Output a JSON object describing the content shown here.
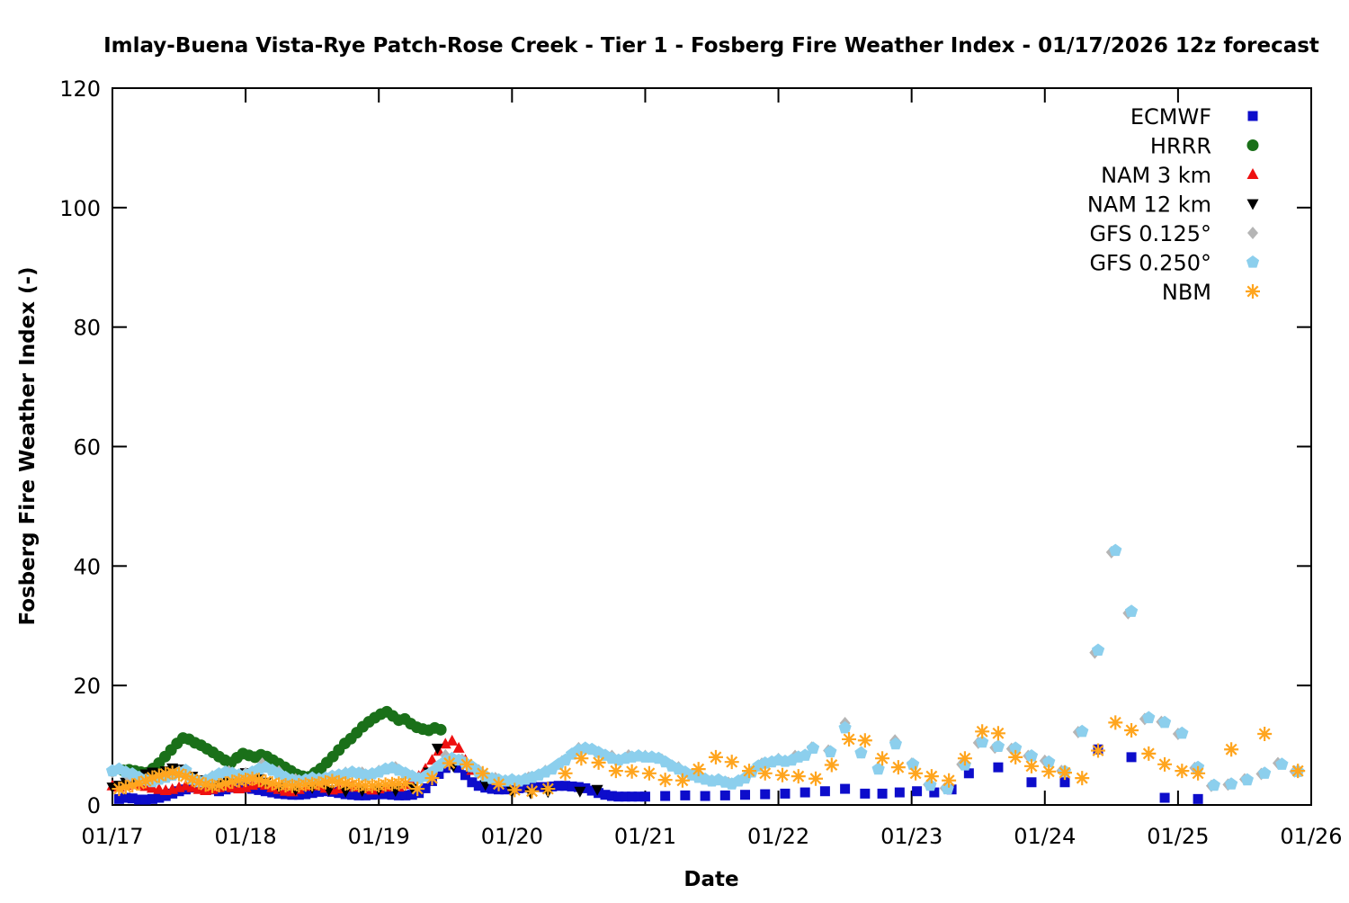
{
  "title": "Imlay-Buena Vista-Rye Patch-Rose Creek - Tier 1 - Fosberg Fire Weather Index - 01/17/2026 12z forecast",
  "chart_data": {
    "type": "scatter",
    "xlabel": "Date",
    "ylabel": "Fosberg Fire Weather Index (-)",
    "x_tick_labels": [
      "01/17",
      "01/18",
      "01/19",
      "01/20",
      "01/21",
      "01/22",
      "01/23",
      "01/24",
      "01/25",
      "01/26"
    ],
    "x_range_days": [
      0,
      9
    ],
    "ylim": [
      0,
      120
    ],
    "y_ticks": [
      0,
      20,
      40,
      60,
      80,
      100,
      120
    ],
    "grid": false,
    "legend_position": "top-right-inside",
    "series": [
      {
        "name": "ECMWF",
        "marker": "square",
        "color": "#0d0dcb",
        "start": 0.05,
        "step": 0.05,
        "values": [
          1.0,
          1.2,
          1.1,
          0.9,
          0.9,
          1.0,
          1.2,
          1.5,
          1.9,
          2.3,
          2.6,
          2.9,
          3.1,
          2.9,
          2.6,
          2.3,
          2.6,
          2.9,
          3.1,
          2.9,
          2.7,
          2.5,
          2.3,
          2.1,
          1.9,
          1.8,
          1.7,
          1.7,
          1.8,
          2.0,
          2.2,
          2.3,
          2.2,
          2.0,
          1.8,
          1.7,
          1.6,
          1.6,
          1.7,
          1.8,
          1.8,
          1.7,
          1.6,
          1.6,
          1.7,
          2.0,
          2.8,
          4.0,
          5.2,
          6.2,
          6.8,
          6.2,
          5.0,
          3.8,
          3.2,
          2.9,
          2.7,
          2.6,
          2.6,
          2.7,
          2.8,
          2.9,
          3.0,
          3.0,
          3.0,
          3.1,
          3.2,
          3.2,
          3.1,
          3.0,
          2.8,
          2.4,
          2.0,
          1.7,
          1.5,
          1.4,
          1.4,
          1.4,
          1.4,
          1.4
        ],
        "extra": [
          [
            4.15,
            1.5
          ],
          [
            4.3,
            1.6
          ],
          [
            4.45,
            1.5
          ],
          [
            4.6,
            1.6
          ],
          [
            4.75,
            1.7
          ],
          [
            4.9,
            1.8
          ],
          [
            5.05,
            1.9
          ],
          [
            5.2,
            2.1
          ],
          [
            5.35,
            2.3
          ],
          [
            5.5,
            2.7
          ],
          [
            5.65,
            1.9
          ],
          [
            5.78,
            1.9
          ],
          [
            5.91,
            2.1
          ],
          [
            6.04,
            2.3
          ],
          [
            6.17,
            2.1
          ],
          [
            6.3,
            2.6
          ],
          [
            6.43,
            5.3
          ],
          [
            6.65,
            6.3
          ],
          [
            6.9,
            3.8
          ],
          [
            7.15,
            3.8
          ],
          [
            7.4,
            9.3
          ],
          [
            7.65,
            8.0
          ],
          [
            7.9,
            1.2
          ],
          [
            8.15,
            1.0
          ]
        ]
      },
      {
        "name": "HRRR",
        "marker": "circle",
        "color": "#1a7019",
        "start": 0.08,
        "step": 0.045,
        "values": [
          5.8,
          5.9,
          5.7,
          5.5,
          5.4,
          6.1,
          7.0,
          8.1,
          9.2,
          10.3,
          11.2,
          11.0,
          10.4,
          10.0,
          9.4,
          8.8,
          8.1,
          7.5,
          7.1,
          7.9,
          8.6,
          8.3,
          8.0,
          8.4,
          8.1,
          7.5,
          6.9,
          6.3,
          5.7,
          5.1,
          4.8,
          4.7,
          5.4,
          6.1,
          7.1,
          8.1,
          9.2,
          10.3,
          11.1,
          12.1,
          13.1,
          13.9,
          14.6,
          15.2,
          15.6,
          14.9,
          14.2,
          14.4,
          13.6,
          13.0,
          12.7,
          12.5,
          12.9,
          12.6
        ],
        "extra": []
      },
      {
        "name": "NAM 3 km",
        "marker": "triangle-up",
        "color": "#ee1111",
        "start": 0.0,
        "step": 0.05,
        "values": [
          3.2,
          3.0,
          3.3,
          3.6,
          3.4,
          3.1,
          2.8,
          2.6,
          2.4,
          2.6,
          2.9,
          3.2,
          2.9,
          2.6,
          2.4,
          2.6,
          2.9,
          3.1,
          2.9,
          2.7,
          2.9,
          3.3,
          3.6,
          3.3,
          2.9,
          2.6,
          2.3,
          2.2,
          2.6,
          3.1,
          3.6,
          3.2,
          2.8,
          2.5,
          2.7,
          3.0,
          3.3,
          3.0,
          2.7,
          2.5,
          2.7,
          3.0,
          3.3,
          3.0,
          3.4,
          4.0,
          4.8,
          6.0,
          7.5,
          9.0,
          10.2,
          10.7,
          9.5,
          7.5,
          5.8
        ],
        "extra": []
      },
      {
        "name": "NAM 12 km",
        "marker": "triangle-down",
        "color": "#000000",
        "start": 0.0,
        "step": 0.05,
        "values": [
          3.0,
          3.3,
          3.8,
          4.3,
          4.8,
          5.2,
          5.5,
          5.3,
          5.7,
          6.2,
          6.0,
          5.5,
          4.8,
          4.2,
          3.6,
          3.2,
          3.4,
          3.8,
          4.4,
          5.0,
          5.4,
          5.0,
          4.4,
          3.8
        ],
        "extra": [
          [
            1.25,
            3.0
          ],
          [
            1.375,
            2.6
          ],
          [
            1.5,
            2.9
          ],
          [
            1.625,
            2.5
          ],
          [
            1.75,
            2.3
          ],
          [
            1.875,
            2.4
          ],
          [
            2.0,
            2.6
          ],
          [
            2.125,
            2.4
          ],
          [
            2.25,
            2.9
          ],
          [
            2.375,
            5.5
          ],
          [
            2.44,
            9.5
          ],
          [
            2.56,
            6.5
          ],
          [
            2.68,
            6.3
          ],
          [
            2.8,
            3.4
          ],
          [
            3.0,
            2.3
          ],
          [
            3.14,
            2.0
          ],
          [
            3.27,
            2.2
          ],
          [
            3.51,
            2.3
          ],
          [
            3.64,
            2.6
          ]
        ]
      },
      {
        "name": "GFS 0.125°",
        "marker": "diamond",
        "color": "#b5b5b5",
        "start": 0.0,
        "step": 0.125,
        "values": [
          5.5,
          4.6,
          4.0,
          4.7,
          5.6,
          4.1,
          4.8,
          5.6,
          5.3,
          6.9,
          5.6,
          4.3,
          4.6,
          4.4,
          5.4,
          5.4,
          5.7,
          6.3,
          4.9,
          5.2,
          8.3,
          7.6,
          5.8,
          4.5,
          4.3,
          4.6,
          5.7,
          7.3,
          9.5,
          9.0,
          8.2,
          8.3,
          8.2,
          7.6,
          6.3,
          5.1,
          4.1,
          3.7,
          4.7,
          6.9,
          7.7,
          8.2,
          9.6,
          9.1,
          13.7,
          8.8,
          6.2,
          10.8,
          6.9,
          3.4,
          2.8,
          6.8,
          10.4,
          9.6,
          9.4,
          8.2,
          7.4,
          5.7,
          12.2,
          25.5,
          42.3,
          32.1,
          14.4,
          13.9,
          11.9,
          6.2,
          3.2,
          3.4,
          4.3,
          5.2,
          7.0,
          5.6
        ],
        "extra": []
      },
      {
        "name": "GFS 0.250°",
        "marker": "pentagon",
        "color": "#8ccfed",
        "start": 0.0,
        "step": 0.05,
        "values": [
          5.7,
          6.0,
          5.5,
          5.2,
          4.6,
          4.2,
          3.9,
          4.3,
          4.6,
          5.0,
          5.4,
          5.8,
          4.3,
          3.9,
          4.1,
          4.6,
          5.2,
          5.5,
          5.3,
          5.0,
          4.9,
          5.5,
          6.0,
          6.3,
          5.8,
          5.2,
          4.6,
          4.2,
          4.0,
          4.2,
          4.5,
          4.3,
          4.5,
          4.8,
          5.0,
          5.2,
          5.5,
          5.3,
          5.0,
          5.2,
          5.5,
          6.0,
          6.2,
          5.8,
          5.3,
          4.8,
          4.4,
          4.8,
          5.5,
          6.5,
          7.3,
          7.8,
          7.5,
          7.0,
          6.4,
          5.5,
          4.8,
          4.4,
          4.2,
          4.0,
          4.2,
          4.0,
          4.3,
          4.6,
          5.0,
          5.5,
          6.0,
          6.8,
          7.5,
          8.5,
          9.2,
          9.5,
          9.3,
          8.8,
          8.3,
          7.8,
          7.5,
          7.8,
          8.0,
          8.2,
          8.0,
          8.0,
          7.8,
          7.2,
          6.5,
          6.0,
          5.5,
          5.0,
          4.6,
          4.3,
          4.0,
          4.2,
          3.8,
          3.5,
          4.0,
          4.5,
          5.5,
          6.5,
          7.0,
          7.2,
          7.5,
          7.3,
          7.5,
          8.0,
          8.3
        ],
        "extra": [
          [
            5.26,
            9.5
          ],
          [
            5.39,
            8.9
          ],
          [
            5.5,
            12.9
          ],
          [
            5.62,
            8.7
          ],
          [
            5.75,
            6.0
          ],
          [
            5.88,
            10.2
          ],
          [
            6.01,
            6.8
          ],
          [
            6.14,
            3.3
          ],
          [
            6.27,
            2.7
          ],
          [
            6.4,
            6.7
          ],
          [
            6.53,
            10.5
          ],
          [
            6.65,
            9.8
          ],
          [
            6.78,
            9.5
          ],
          [
            6.9,
            8.2
          ],
          [
            7.03,
            7.2
          ],
          [
            7.15,
            5.6
          ],
          [
            7.28,
            12.3
          ],
          [
            7.4,
            25.9
          ],
          [
            7.53,
            42.6
          ],
          [
            7.65,
            32.4
          ],
          [
            7.78,
            14.6
          ],
          [
            7.9,
            13.8
          ],
          [
            8.03,
            12.0
          ],
          [
            8.15,
            6.3
          ],
          [
            8.27,
            3.3
          ],
          [
            8.4,
            3.5
          ],
          [
            8.52,
            4.2
          ],
          [
            8.65,
            5.3
          ],
          [
            8.78,
            6.8
          ],
          [
            8.9,
            5.6
          ]
        ]
      },
      {
        "name": "NBM",
        "marker": "asterisk",
        "color": "#ffa51e",
        "start": 0.05,
        "step": 0.05,
        "values": [
          2.7,
          3.0,
          3.3,
          3.6,
          4.0,
          4.6,
          4.9,
          5.2,
          5.4,
          5.2,
          4.8,
          4.3,
          3.8,
          3.4,
          3.2,
          3.3,
          3.6,
          3.9,
          4.1,
          4.2,
          4.4,
          4.2,
          3.9,
          3.6,
          3.4,
          3.3,
          3.2,
          3.3,
          3.4,
          3.5,
          3.6,
          3.8,
          4.0,
          3.8,
          3.6,
          3.4,
          3.3,
          3.2,
          3.2,
          3.3,
          3.4,
          3.5,
          3.6,
          3.6
        ],
        "extra": [
          [
            2.29,
            2.7
          ],
          [
            2.4,
            4.5
          ],
          [
            2.53,
            7.0
          ],
          [
            2.66,
            6.8
          ],
          [
            2.78,
            5.3
          ],
          [
            2.9,
            3.5
          ],
          [
            3.02,
            2.5
          ],
          [
            3.15,
            2.3
          ],
          [
            3.27,
            2.7
          ],
          [
            3.4,
            5.3
          ],
          [
            3.52,
            7.8
          ],
          [
            3.65,
            7.1
          ],
          [
            3.78,
            5.7
          ],
          [
            3.9,
            5.6
          ],
          [
            4.03,
            5.3
          ],
          [
            4.15,
            4.2
          ],
          [
            4.28,
            4.1
          ],
          [
            4.4,
            6.0
          ],
          [
            4.53,
            8.0
          ],
          [
            4.65,
            7.2
          ],
          [
            4.78,
            5.7
          ],
          [
            4.9,
            5.3
          ],
          [
            5.03,
            5.0
          ],
          [
            5.15,
            4.8
          ],
          [
            5.28,
            4.4
          ],
          [
            5.4,
            6.7
          ],
          [
            5.53,
            11.0
          ],
          [
            5.65,
            10.8
          ],
          [
            5.78,
            7.8
          ],
          [
            5.9,
            6.3
          ],
          [
            6.03,
            5.3
          ],
          [
            6.15,
            4.8
          ],
          [
            6.28,
            4.1
          ],
          [
            6.4,
            7.8
          ],
          [
            6.53,
            12.3
          ],
          [
            6.65,
            12.0
          ],
          [
            6.78,
            8.0
          ],
          [
            6.9,
            6.5
          ],
          [
            7.03,
            5.6
          ],
          [
            7.15,
            5.4
          ],
          [
            7.28,
            4.5
          ],
          [
            7.4,
            9.1
          ],
          [
            7.53,
            13.8
          ],
          [
            7.65,
            12.5
          ],
          [
            7.78,
            8.6
          ],
          [
            7.9,
            6.8
          ],
          [
            8.03,
            5.7
          ],
          [
            8.15,
            5.3
          ],
          [
            8.4,
            9.3
          ],
          [
            8.65,
            11.9
          ],
          [
            8.9,
            5.7
          ]
        ]
      }
    ]
  }
}
